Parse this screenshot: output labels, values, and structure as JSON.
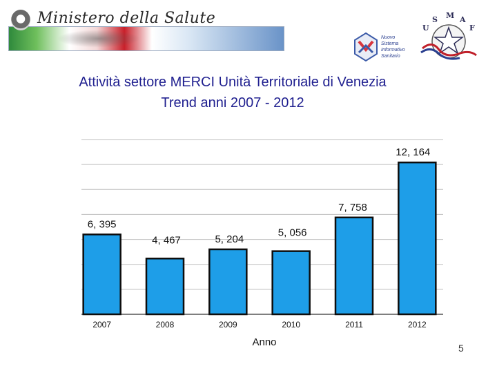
{
  "header": {
    "ministry_title": "Ministero della Salute",
    "nsis_lines": [
      "Nuovo",
      "Sistema",
      "Informativo",
      "Sanitario"
    ],
    "usmaf_letters": [
      "U",
      "S",
      "M",
      "A",
      "F"
    ]
  },
  "chart_data": {
    "type": "bar",
    "title": "Attività settore MERCI Unità Territoriale di Venezia",
    "subtitle": "Trend  anni 2007 - 2012",
    "categories": [
      "2007",
      "2008",
      "2009",
      "2010",
      "2011",
      "2012"
    ],
    "values": [
      6395,
      4467,
      5204,
      5056,
      7758,
      12164
    ],
    "data_labels": [
      "6, 395",
      "4, 467",
      "5, 204",
      "5, 056",
      "7, 758",
      "12, 164"
    ],
    "xlabel": "Anno",
    "ylabel": "",
    "ylim": [
      0,
      14000
    ],
    "grid": true,
    "bar_color": "#1e9ee8",
    "legend": "none"
  },
  "page_number": "5"
}
